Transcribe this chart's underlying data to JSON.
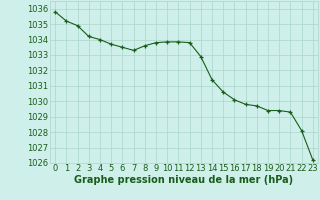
{
  "title": "Graphe pression niveau de la mer (hPa)",
  "x_values": [
    0,
    1,
    2,
    3,
    4,
    5,
    6,
    7,
    8,
    9,
    10,
    11,
    12,
    13,
    14,
    15,
    16,
    17,
    18,
    19,
    20,
    21,
    22,
    23
  ],
  "y_values": [
    1035.8,
    1035.2,
    1034.9,
    1034.2,
    1034.0,
    1033.7,
    1033.5,
    1033.3,
    1033.6,
    1033.8,
    1033.85,
    1033.85,
    1033.8,
    1032.9,
    1031.4,
    1030.6,
    1030.1,
    1029.8,
    1029.7,
    1029.4,
    1029.4,
    1029.3,
    1028.1,
    1026.2
  ],
  "ylim": [
    1026,
    1036.5
  ],
  "xlim": [
    -0.5,
    23.5
  ],
  "yticks": [
    1026,
    1027,
    1028,
    1029,
    1030,
    1031,
    1032,
    1033,
    1034,
    1035,
    1036
  ],
  "xticks": [
    0,
    1,
    2,
    3,
    4,
    5,
    6,
    7,
    8,
    9,
    10,
    11,
    12,
    13,
    14,
    15,
    16,
    17,
    18,
    19,
    20,
    21,
    22,
    23
  ],
  "line_color": "#1a5c1a",
  "marker_color": "#1a5c1a",
  "bg_color": "#cff0ea",
  "grid_color": "#aad4cc",
  "title_color": "#1a5c1a",
  "tick_label_color": "#1a5c1a",
  "title_fontsize": 7.0,
  "tick_fontsize": 6.0
}
